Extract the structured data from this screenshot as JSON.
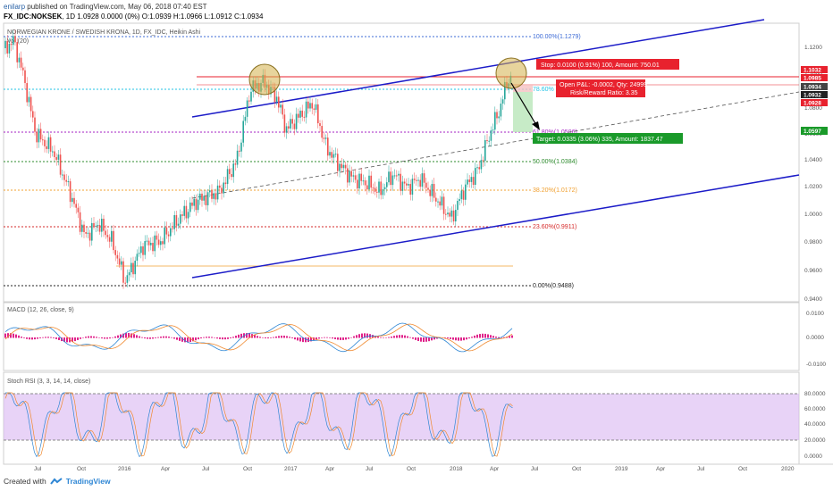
{
  "header": {
    "user": "enilarp",
    "published_text": "published on TradingView.com, May 06, 2018 07:40 EST",
    "symbol": "FX_IDC:NOKSEK",
    "interval": "1D",
    "ohlc": "1.0928 0.0000 (0%) O:1.0939 H:1.0966 L:1.0912 C:1.0934"
  },
  "chart": {
    "pair_title": "NORWEGIAN KRONE / SWEDISH KRONA, 1D, FX_IDC, Heikin Ashi",
    "vol_label": "Vol (20)",
    "price_axis": [
      "1.1200",
      "1.1000",
      "1.0800",
      "1.0600",
      "1.0400",
      "1.0200",
      "1.0000",
      "0.9800",
      "0.9600",
      "0.9400"
    ],
    "price_tags": [
      {
        "text": "1.1032",
        "color": "#e8222e"
      },
      {
        "text": "1.0985",
        "color": "#e8222e"
      },
      {
        "text": "1.0934",
        "color": "#444444"
      },
      {
        "text": "1.0932",
        "color": "#222222"
      },
      {
        "text": "1.0928",
        "color": "#e8222e"
      },
      {
        "text": "1.0597",
        "color": "#1a9a2a"
      }
    ],
    "fib_levels": [
      {
        "label": "100.00%(1.1279)",
        "color": "#3d6bd6"
      },
      {
        "label": "78.60%",
        "color": "#22c3e6"
      },
      {
        "label": "61.80%(1.0596)",
        "color": "#a422c3"
      },
      {
        "label": "50.00%(1.0384)",
        "color": "#2e8b2e"
      },
      {
        "label": "38.20%(1.0172)",
        "color": "#f0a030"
      },
      {
        "label": "23.60%(0.9911)",
        "color": "#d62a2a"
      },
      {
        "label": "0.00%(0.9488)",
        "color": "#222222"
      }
    ],
    "stop_label": "Stop: 0.0100 (0.91%) 100, Amount: 750.01",
    "pnl_label_1": "Open P&L: -0.0002, Qty: 24999",
    "pnl_label_2": "Risk/Reward Ratio: 3.35",
    "target_label": "Target: 0.0335 (3.06%) 335, Amount: 1837.47",
    "colors": {
      "up": "#26a69a",
      "down": "#ef5350",
      "channel": "#1c1cc8",
      "stop": "#e8222e",
      "target": "#1a9a2a"
    }
  },
  "macd": {
    "title": "MACD (12, 26, close, 9)",
    "axis": [
      "0.0100",
      "0.0000",
      "-0.0100"
    ]
  },
  "stoch": {
    "title": "Stoch RSI (3, 3, 14, 14, close)",
    "axis": [
      "80.0000",
      "60.0000",
      "40.0000",
      "20.0000",
      "0.0000"
    ]
  },
  "time_axis": [
    "Jul",
    "Oct",
    "2016",
    "Apr",
    "Jul",
    "Oct",
    "2017",
    "Apr",
    "Jul",
    "Oct",
    "2018",
    "Apr",
    "Jul",
    "Oct",
    "2019",
    "Apr",
    "Jul",
    "Oct",
    "2020"
  ],
  "footer": {
    "created_with": "Created with",
    "brand": "TradingView"
  }
}
